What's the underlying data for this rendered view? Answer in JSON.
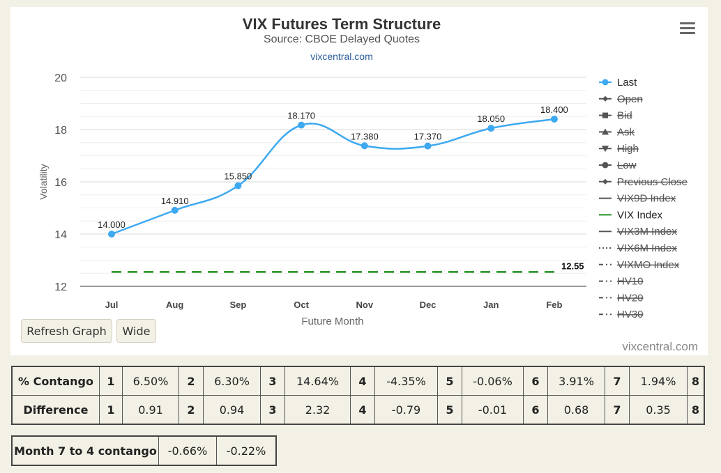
{
  "chart_data": {
    "type": "line",
    "title": "VIX Futures Term Structure",
    "subtitle": "Source: CBOE Delayed Quotes",
    "source_link": "vixcentral.com",
    "xlabel": "Future Month",
    "ylabel": "Volatility",
    "categories": [
      "Jul",
      "Aug",
      "Sep",
      "Oct",
      "Nov",
      "Dec",
      "Jan",
      "Feb"
    ],
    "ylim": [
      12,
      20
    ],
    "yticks": [
      "12",
      "14",
      "16",
      "18",
      "20"
    ],
    "grid": true,
    "series": [
      {
        "name": "Last",
        "values": [
          14.0,
          14.91,
          15.85,
          18.17,
          17.38,
          17.37,
          18.05,
          18.4
        ],
        "labels": [
          "14.000",
          "14.910",
          "15.850",
          "18.170",
          "17.380",
          "17.370",
          "18.050",
          "18.400"
        ],
        "color": "#3da9f0"
      },
      {
        "name": "VIX Index",
        "values": [
          12.55,
          12.55,
          12.55,
          12.55,
          12.55,
          12.55,
          12.55,
          12.55
        ],
        "end_label": "12.55",
        "color": "#1f8f1f",
        "dashed": true
      }
    ],
    "legend_position": "right",
    "legend": [
      {
        "name": "Last",
        "symbol": "circle",
        "active": true
      },
      {
        "name": "Open",
        "symbol": "diamond",
        "active": false
      },
      {
        "name": "Bid",
        "symbol": "square",
        "active": false
      },
      {
        "name": "Ask",
        "symbol": "triangle",
        "active": false
      },
      {
        "name": "High",
        "symbol": "triangle-down",
        "active": false
      },
      {
        "name": "Low",
        "symbol": "circle",
        "active": false
      },
      {
        "name": "Previous Close",
        "symbol": "diamond",
        "active": false
      },
      {
        "name": "VIX9D Index",
        "symbol": "line",
        "active": false
      },
      {
        "name": "VIX Index",
        "symbol": "line",
        "active": true,
        "color": "#1f8f1f"
      },
      {
        "name": "VIX3M Index",
        "symbol": "line",
        "active": false
      },
      {
        "name": "VIX6M Index",
        "symbol": "dotted",
        "active": false
      },
      {
        "name": "VIXMO Index",
        "symbol": "dashdot",
        "active": false
      },
      {
        "name": "HV10",
        "symbol": "dashdot",
        "active": false
      },
      {
        "name": "HV20",
        "symbol": "dashdot",
        "active": false
      },
      {
        "name": "HV30",
        "symbol": "dashdot",
        "active": false
      }
    ]
  },
  "controls": {
    "refresh_label": "Refresh Graph",
    "wide_label": "Wide",
    "menu_icon": "hamburger-menu-icon"
  },
  "footer": {
    "credit": "vixcentral.com"
  },
  "contango_table": {
    "rows": [
      {
        "label": "% Contango",
        "cells": [
          [
            "1",
            "6.50%"
          ],
          [
            "2",
            "6.30%"
          ],
          [
            "3",
            "14.64%"
          ],
          [
            "4",
            "-4.35%"
          ],
          [
            "5",
            "-0.06%"
          ],
          [
            "6",
            "3.91%"
          ],
          [
            "7",
            "1.94%"
          ],
          [
            "8",
            ""
          ]
        ]
      },
      {
        "label": "Difference",
        "cells": [
          [
            "1",
            "0.91"
          ],
          [
            "2",
            "0.94"
          ],
          [
            "3",
            "2.32"
          ],
          [
            "4",
            "-0.79"
          ],
          [
            "5",
            "-0.01"
          ],
          [
            "6",
            "0.68"
          ],
          [
            "7",
            "0.35"
          ],
          [
            "8",
            ""
          ]
        ]
      }
    ]
  },
  "month_contango": {
    "label": "Month 7 to 4 contango",
    "values": [
      "-0.66%",
      "-0.22%"
    ]
  }
}
